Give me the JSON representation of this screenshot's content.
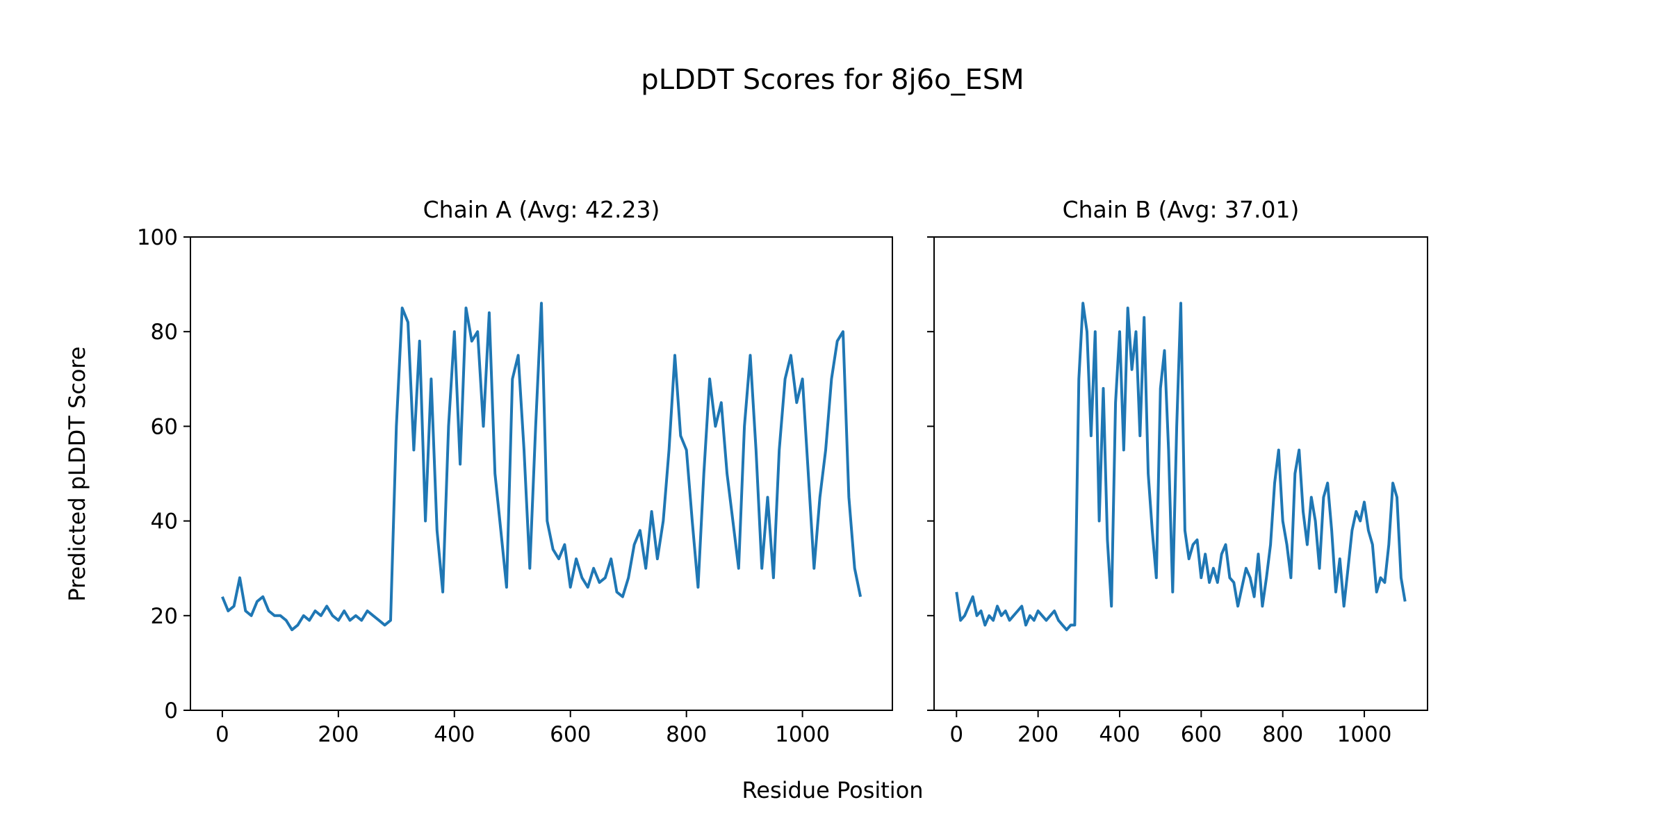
{
  "chart_data": {
    "type": "line",
    "title": "pLDDT Scores for 8j6o_ESM",
    "xlabel": "Residue Position",
    "ylabel": "Predicted pLDDT Score",
    "ylim": [
      0,
      100
    ],
    "xlim": [
      -55,
      1155
    ],
    "xticks": [
      0,
      200,
      400,
      600,
      800,
      1000
    ],
    "yticks": [
      0,
      20,
      40,
      60,
      80,
      100
    ],
    "grid": false,
    "line_color": "#1f77b4",
    "x_step": 10,
    "panels": [
      {
        "title": "Chain A (Avg: 42.23)",
        "name": "Chain A",
        "values": [
          24,
          21,
          22,
          28,
          21,
          20,
          23,
          24,
          21,
          20,
          20,
          19,
          17,
          18,
          20,
          19,
          21,
          20,
          22,
          20,
          19,
          21,
          19,
          20,
          19,
          21,
          20,
          19,
          18,
          19,
          60,
          85,
          82,
          55,
          78,
          40,
          70,
          38,
          25,
          60,
          80,
          52,
          85,
          78,
          80,
          60,
          84,
          50,
          38,
          26,
          70,
          75,
          55,
          30,
          60,
          86,
          40,
          34,
          32,
          35,
          26,
          32,
          28,
          26,
          30,
          27,
          28,
          32,
          25,
          24,
          28,
          35,
          38,
          30,
          42,
          32,
          40,
          55,
          75,
          58,
          55,
          40,
          26,
          50,
          70,
          60,
          65,
          50,
          40,
          30,
          60,
          75,
          55,
          30,
          45,
          28,
          55,
          70,
          75,
          65,
          70,
          50,
          30,
          45,
          55,
          70,
          78,
          80,
          45,
          30,
          24
        ]
      },
      {
        "title": "Chain B (Avg: 37.01)",
        "name": "Chain B",
        "values": [
          25,
          19,
          20,
          22,
          24,
          20,
          21,
          18,
          20,
          19,
          22,
          20,
          21,
          19,
          20,
          21,
          22,
          18,
          20,
          19,
          21,
          20,
          19,
          20,
          21,
          19,
          18,
          17,
          18,
          18,
          70,
          86,
          80,
          58,
          80,
          40,
          68,
          36,
          22,
          65,
          80,
          55,
          85,
          72,
          80,
          58,
          83,
          50,
          38,
          28,
          68,
          76,
          55,
          25,
          60,
          86,
          38,
          32,
          35,
          36,
          28,
          33,
          27,
          30,
          27,
          33,
          35,
          28,
          27,
          22,
          26,
          30,
          28,
          24,
          33,
          22,
          28,
          35,
          48,
          55,
          40,
          35,
          28,
          50,
          55,
          42,
          35,
          45,
          40,
          30,
          45,
          48,
          38,
          25,
          32,
          22,
          30,
          38,
          42,
          40,
          44,
          38,
          35,
          25,
          28,
          27,
          35,
          48,
          45,
          28,
          23
        ]
      }
    ]
  }
}
